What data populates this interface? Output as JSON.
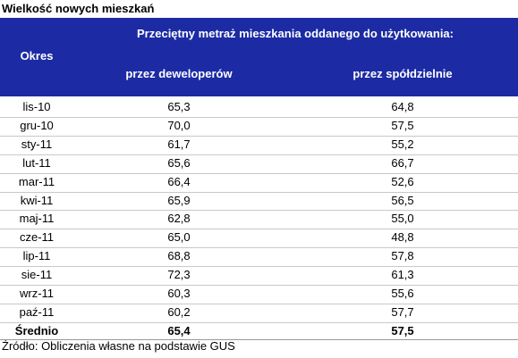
{
  "header": {
    "title": "Wielkość nowych mieszkań"
  },
  "table": {
    "period_header": "Okres",
    "group_header": "Przeciętny metraż mieszkania oddanego do użytkowania:",
    "columns": [
      "przez deweloperów",
      "przez spółdzielnie"
    ],
    "rows": [
      [
        "lis-10",
        "65,3",
        "64,8"
      ],
      [
        "gru-10",
        "70,0",
        "57,5"
      ],
      [
        "sty-11",
        "61,7",
        "55,2"
      ],
      [
        "lut-11",
        "65,6",
        "66,7"
      ],
      [
        "mar-11",
        "66,4",
        "52,6"
      ],
      [
        "kwi-11",
        "65,9",
        "56,5"
      ],
      [
        "maj-11",
        "62,8",
        "55,0"
      ],
      [
        "cze-11",
        "65,0",
        "48,8"
      ],
      [
        "lip-11",
        "68,8",
        "57,8"
      ],
      [
        "sie-11",
        "72,3",
        "61,3"
      ],
      [
        "wrz-11",
        "60,3",
        "55,6"
      ],
      [
        "paź-11",
        "60,2",
        "57,7"
      ]
    ],
    "summary": [
      "Średnio",
      "65,4",
      "57,5"
    ]
  },
  "footer": {
    "source": "Źródło: Obliczenia własne na podstawie GUS"
  }
}
